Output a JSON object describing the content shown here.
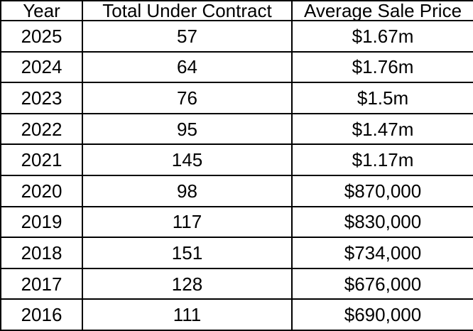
{
  "chart_data": {
    "type": "table",
    "columns": [
      "Year",
      "Total Under Contract",
      "Average Sale Price"
    ],
    "rows": [
      [
        "2025",
        "57",
        "$1.67m"
      ],
      [
        "2024",
        "64",
        "$1.76m"
      ],
      [
        "2023",
        "76",
        "$1.5m"
      ],
      [
        "2022",
        "95",
        "$1.47m"
      ],
      [
        "2021",
        "145",
        "$1.17m"
      ],
      [
        "2020",
        "98",
        "$870,000"
      ],
      [
        "2019",
        "117",
        "$830,000"
      ],
      [
        "2018",
        "151",
        "$734,000"
      ],
      [
        "2017",
        "128",
        "$676,000"
      ],
      [
        "2016",
        "111",
        "$690,000"
      ]
    ],
    "layout": {
      "grid": "all-borders",
      "cell_alignment": "center"
    }
  },
  "colors": {
    "border": "#000000",
    "background": "#ffffff",
    "text": "#000000"
  }
}
